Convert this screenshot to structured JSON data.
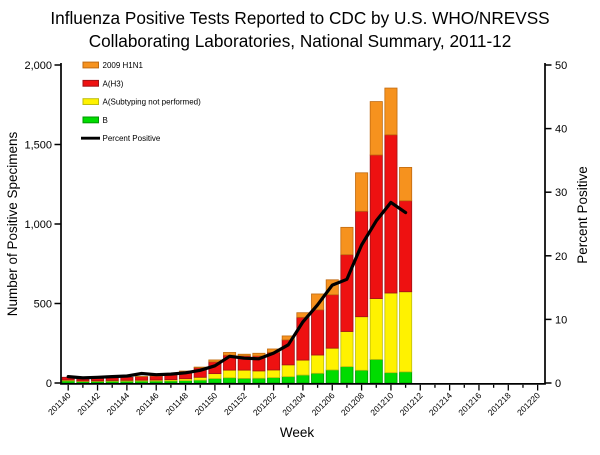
{
  "title": {
    "line1": "Influenza Positive Tests Reported to CDC by U.S. WHO/NREVSS",
    "line2": "Collaborating Laboratories, National Summary, 2011-12"
  },
  "chart_data": {
    "type": "bar",
    "stacked": true,
    "overlay_line": true,
    "title": "Influenza Positive Tests Reported to CDC by U.S. WHO/NREVSS Collaborating Laboratories, National Summary, 2011-12",
    "xlabel": "Week",
    "ylabel": "Number of Positive Specimens",
    "ylabel_right": "Percent Positive",
    "ylim": [
      0,
      2000
    ],
    "ylim_right": [
      0,
      50
    ],
    "grid": false,
    "legend_position": "top-left-inside",
    "yticks": [
      "0",
      "500",
      "1,000",
      "1,500",
      "2,000"
    ],
    "yticks_right": [
      "0",
      "10",
      "20",
      "30",
      "40",
      "50"
    ],
    "axis_weeks": [
      "201140",
      "201141",
      "201142",
      "201143",
      "201144",
      "201145",
      "201146",
      "201147",
      "201148",
      "201149",
      "201150",
      "201151",
      "201152",
      "201201",
      "201202",
      "201203",
      "201204",
      "201205",
      "201206",
      "201207",
      "201208",
      "201209",
      "201210",
      "201211",
      "201212",
      "201213",
      "201214",
      "201215",
      "201216",
      "201217",
      "201218",
      "201219",
      "201220"
    ],
    "x_labeled_ticks": [
      "201140",
      "201142",
      "201144",
      "201146",
      "201148",
      "201150",
      "201152",
      "201202",
      "201204",
      "201206",
      "201208",
      "201210",
      "201212",
      "201214",
      "201216",
      "201218",
      "201220"
    ],
    "categories": [
      "201140",
      "201141",
      "201142",
      "201143",
      "201144",
      "201145",
      "201146",
      "201147",
      "201148",
      "201149",
      "201150",
      "201151",
      "201152",
      "201201",
      "201202",
      "201203",
      "201204",
      "201205",
      "201206",
      "201207",
      "201208",
      "201209",
      "201210",
      "201211"
    ],
    "series": [
      {
        "name": "B",
        "color": "#00DC00",
        "border": "#009900",
        "values": [
          13,
          9,
          10,
          11,
          11,
          12,
          12,
          13,
          15,
          18,
          28,
          33,
          29,
          30,
          34,
          40,
          50,
          61,
          82,
          103,
          80,
          148,
          65,
          70
        ]
      },
      {
        "name": "A(Subtyping not performed)",
        "color": "#FFF200",
        "border": "#BDBD0E",
        "values": [
          6,
          4,
          4,
          5,
          6,
          6,
          7,
          8,
          12,
          18,
          31,
          48,
          52,
          46,
          48,
          74,
          94,
          115,
          137,
          221,
          337,
          383,
          501,
          504
        ]
      },
      {
        "name": "A(H3)",
        "color": "#EE1111",
        "border": "#A01216",
        "values": [
          17,
          12,
          14,
          17,
          19,
          22,
          25,
          30,
          45,
          60,
          74,
          94,
          90,
          94,
          111,
          157,
          269,
          284,
          336,
          483,
          663,
          903,
          995,
          572
        ]
      },
      {
        "name": "2009 H1N1",
        "color": "#F6921E",
        "border": "#C06A10",
        "values": [
          0,
          0,
          0,
          0,
          0,
          1,
          1,
          1,
          3,
          4,
          12,
          17,
          10,
          17,
          21,
          25,
          29,
          100,
          94,
          172,
          242,
          336,
          294,
          210
        ]
      }
    ],
    "line_series": {
      "name": "Percent Positive",
      "color": "#000000",
      "values": [
        1.0,
        0.8,
        0.9,
        1.0,
        1.1,
        1.5,
        1.3,
        1.4,
        1.6,
        2.0,
        2.7,
        4.2,
        3.9,
        3.8,
        4.7,
        6.0,
        9.6,
        12.3,
        15.4,
        16.3,
        21.7,
        25.5,
        28.4,
        26.8
      ]
    },
    "legend": [
      {
        "label": "2009 H1N1",
        "swatch": "box",
        "color": "#F6921E",
        "border": "#C06A10"
      },
      {
        "label": "A(H3)",
        "swatch": "box",
        "color": "#EE1111",
        "border": "#A01216"
      },
      {
        "label": "A(Subtyping not performed)",
        "swatch": "box",
        "color": "#FFF200",
        "border": "#BDBD0E"
      },
      {
        "label": "B",
        "swatch": "box",
        "color": "#00DC00",
        "border": "#009900"
      },
      {
        "label": "Percent Positive",
        "swatch": "line",
        "color": "#000000"
      }
    ]
  }
}
